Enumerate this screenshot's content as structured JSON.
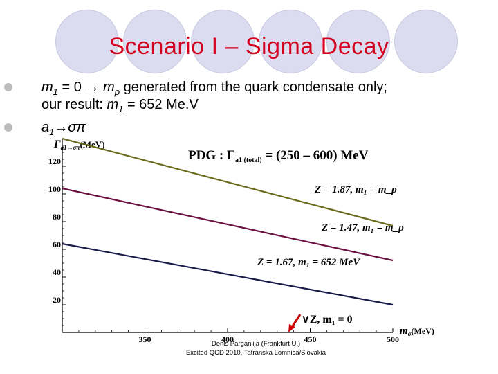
{
  "slide": {
    "title": "Scenario I – Sigma Decay",
    "bullets": [
      {
        "line1_parts": [
          "m",
          "1",
          " = 0 → ",
          "m",
          "ρ",
          " generated from the quark condensate only;"
        ],
        "line2_parts": [
          "our result: ",
          "m",
          "1",
          " = 652 Me.V"
        ]
      },
      {
        "parts": [
          "a",
          "1",
          "→σπ"
        ]
      }
    ],
    "footer": {
      "line1": "Denis Parganlija (Frankfurt U.)",
      "line2": "Excited QCD 2010, Tatranska Lomnica/Slovakia"
    }
  },
  "chart_data": {
    "type": "line",
    "ylabel_main": "Γ",
    "ylabel_sub": "a1→σπ",
    "ylabel_unit": "(MeV)",
    "xlabel_main": "m",
    "xlabel_sub": "σ",
    "xlabel_unit": "(MeV)",
    "pdg_text_pre": "PDG : Γ",
    "pdg_text_sub": "a1 (total)",
    "pdg_text_post": " = (250 – 600) MeV",
    "xlim": [
      300,
      500
    ],
    "ylim": [
      0,
      140
    ],
    "x_ticks": [
      350,
      400,
      450,
      500
    ],
    "y_ticks": [
      20,
      40,
      60,
      80,
      100,
      120
    ],
    "series": [
      {
        "label_text": "Z = 1.87, m₁ = m_ρ",
        "color": "#6b6b1e",
        "points": [
          [
            300,
            140
          ],
          [
            500,
            77
          ]
        ]
      },
      {
        "label_text": "Z = 1.47, m₁ = m_ρ",
        "color": "#6b1040",
        "points": [
          [
            300,
            104
          ],
          [
            500,
            52
          ]
        ]
      },
      {
        "label_text": "Z = 1.67, m₁ = 652 MeV",
        "color": "#1a1a4a",
        "points": [
          [
            300,
            64
          ],
          [
            500,
            20
          ]
        ]
      }
    ],
    "marker": {
      "label_text": "∨Z, m₁ = 0",
      "x": 445,
      "y": 7
    }
  },
  "colors": {
    "title": "#d4001f",
    "circle": "#dcdcf0",
    "arrow": "#d00000",
    "axis": "#000000"
  }
}
